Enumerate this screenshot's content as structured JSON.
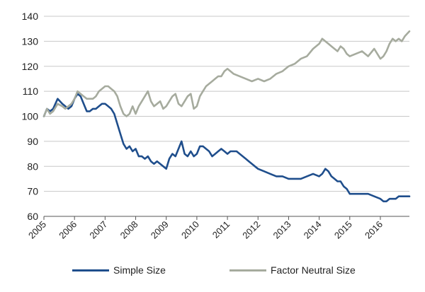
{
  "chart_data": {
    "type": "line",
    "title": "",
    "xlabel": "",
    "ylabel": "",
    "xlim": [
      2005,
      2016.95
    ],
    "ylim": [
      60,
      140
    ],
    "yticks": [
      60,
      70,
      80,
      90,
      100,
      110,
      120,
      130,
      140
    ],
    "xticks": [
      "2005",
      "2006",
      "2007",
      "2008",
      "2009",
      "2010",
      "2011",
      "2012",
      "2013",
      "2014",
      "2015",
      "2016"
    ],
    "grid": "horizontal",
    "legend_position": "bottom",
    "series": [
      {
        "name": "Simple Size",
        "color": "#1f4e8c",
        "x": [
          2005.0,
          2005.1,
          2005.2,
          2005.3,
          2005.45,
          2005.6,
          2005.7,
          2005.8,
          2005.9,
          2006.0,
          2006.1,
          2006.2,
          2006.3,
          2006.4,
          2006.5,
          2006.6,
          2006.7,
          2006.8,
          2006.9,
          2007.0,
          2007.1,
          2007.2,
          2007.3,
          2007.4,
          2007.5,
          2007.6,
          2007.7,
          2007.8,
          2007.9,
          2008.0,
          2008.1,
          2008.2,
          2008.3,
          2008.4,
          2008.5,
          2008.6,
          2008.7,
          2008.8,
          2008.9,
          2009.0,
          2009.1,
          2009.2,
          2009.3,
          2009.4,
          2009.5,
          2009.6,
          2009.7,
          2009.8,
          2009.9,
          2010.0,
          2010.1,
          2010.2,
          2010.3,
          2010.4,
          2010.5,
          2010.6,
          2010.7,
          2010.8,
          2010.9,
          2011.0,
          2011.1,
          2011.2,
          2011.3,
          2011.4,
          2011.5,
          2011.6,
          2011.7,
          2011.8,
          2011.9,
          2012.0,
          2012.2,
          2012.4,
          2012.6,
          2012.8,
          2013.0,
          2013.2,
          2013.4,
          2013.6,
          2013.8,
          2014.0,
          2014.1,
          2014.2,
          2014.3,
          2014.4,
          2014.5,
          2014.6,
          2014.7,
          2014.8,
          2014.9,
          2015.0,
          2015.2,
          2015.4,
          2015.6,
          2015.8,
          2016.0,
          2016.1,
          2016.2,
          2016.3,
          2016.4,
          2016.5,
          2016.6,
          2016.7,
          2016.8,
          2016.95
        ],
        "y": [
          100,
          103,
          102,
          103,
          107,
          105,
          104,
          103,
          104,
          107,
          109,
          108,
          105,
          102,
          102,
          103,
          103,
          104,
          105,
          105,
          104,
          103,
          101,
          97,
          93,
          89,
          87,
          88,
          86,
          87,
          84,
          84,
          83,
          84,
          82,
          81,
          82,
          81,
          80,
          79,
          83,
          85,
          84,
          87,
          90,
          85,
          84,
          86,
          84,
          85,
          88,
          88,
          87,
          86,
          84,
          85,
          86,
          87,
          86,
          85,
          86,
          86,
          86,
          85,
          84,
          83,
          82,
          81,
          80,
          79,
          78,
          77,
          76,
          76,
          75,
          75,
          75,
          76,
          77,
          76,
          77,
          79,
          78,
          76,
          75,
          74,
          74,
          72,
          71,
          69,
          69,
          69,
          69,
          68,
          67,
          66,
          66,
          67,
          67,
          67,
          68,
          68,
          68,
          68
        ]
      },
      {
        "name": "Factor Neutral Size",
        "color": "#a6ab9e",
        "x": [
          2005.0,
          2005.1,
          2005.2,
          2005.3,
          2005.45,
          2005.6,
          2005.7,
          2005.8,
          2005.9,
          2006.0,
          2006.1,
          2006.2,
          2006.3,
          2006.4,
          2006.5,
          2006.6,
          2006.7,
          2006.8,
          2006.9,
          2007.0,
          2007.1,
          2007.2,
          2007.3,
          2007.4,
          2007.5,
          2007.6,
          2007.7,
          2007.8,
          2007.9,
          2008.0,
          2008.1,
          2008.2,
          2008.3,
          2008.4,
          2008.5,
          2008.6,
          2008.7,
          2008.8,
          2008.9,
          2009.0,
          2009.1,
          2009.2,
          2009.3,
          2009.4,
          2009.5,
          2009.6,
          2009.7,
          2009.8,
          2009.9,
          2010.0,
          2010.1,
          2010.2,
          2010.3,
          2010.4,
          2010.5,
          2010.6,
          2010.7,
          2010.8,
          2010.9,
          2011.0,
          2011.2,
          2011.4,
          2011.6,
          2011.8,
          2012.0,
          2012.2,
          2012.4,
          2012.6,
          2012.8,
          2013.0,
          2013.2,
          2013.4,
          2013.6,
          2013.8,
          2014.0,
          2014.1,
          2014.2,
          2014.3,
          2014.4,
          2014.5,
          2014.6,
          2014.7,
          2014.8,
          2014.9,
          2015.0,
          2015.2,
          2015.4,
          2015.6,
          2015.8,
          2016.0,
          2016.1,
          2016.2,
          2016.3,
          2016.4,
          2016.5,
          2016.6,
          2016.7,
          2016.8,
          2016.95
        ],
        "y": [
          100,
          103,
          101,
          102,
          105,
          104,
          103,
          104,
          105,
          107,
          110,
          109,
          108,
          107,
          107,
          107,
          108,
          110,
          111,
          112,
          112,
          111,
          110,
          108,
          104,
          101,
          100,
          101,
          104,
          101,
          104,
          106,
          108,
          110,
          106,
          104,
          105,
          106,
          103,
          104,
          106,
          108,
          109,
          105,
          104,
          106,
          108,
          109,
          103,
          104,
          108,
          110,
          112,
          113,
          114,
          115,
          116,
          116,
          118,
          119,
          117,
          116,
          115,
          114,
          115,
          114,
          115,
          117,
          118,
          120,
          121,
          123,
          124,
          127,
          129,
          131,
          130,
          129,
          128,
          127,
          126,
          128,
          127,
          125,
          124,
          125,
          126,
          124,
          127,
          123,
          124,
          126,
          129,
          131,
          130,
          131,
          130,
          132,
          134
        ]
      }
    ]
  }
}
